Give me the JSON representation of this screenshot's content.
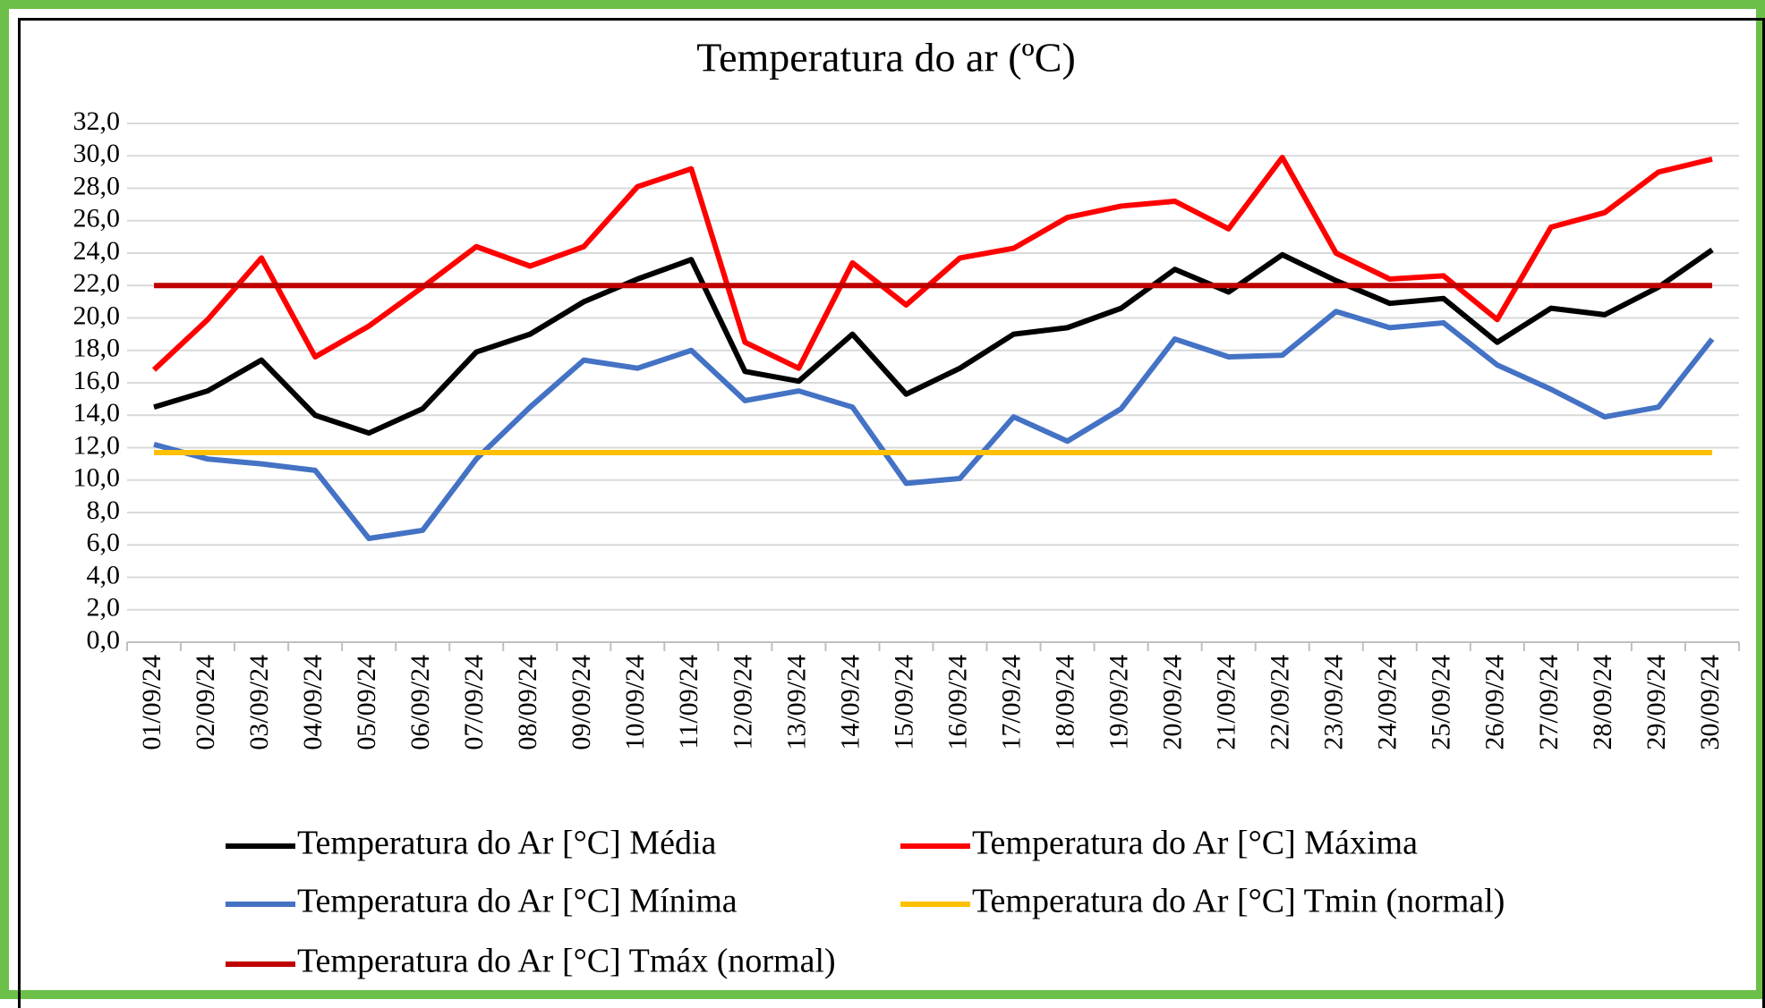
{
  "chart_data": {
    "type": "line",
    "title": "Temperatura do ar (ºC)",
    "categories": [
      "01/09/24",
      "02/09/24",
      "03/09/24",
      "04/09/24",
      "05/09/24",
      "06/09/24",
      "07/09/24",
      "08/09/24",
      "09/09/24",
      "10/09/24",
      "11/09/24",
      "12/09/24",
      "13/09/24",
      "14/09/24",
      "15/09/24",
      "16/09/24",
      "17/09/24",
      "18/09/24",
      "19/09/24",
      "20/09/24",
      "21/09/24",
      "22/09/24",
      "23/09/24",
      "24/09/24",
      "25/09/24",
      "26/09/24",
      "27/09/24",
      "28/09/24",
      "29/09/24",
      "30/09/24"
    ],
    "series": [
      {
        "name": "Temperatura do Ar [°C] Média",
        "color": "#000000",
        "values": [
          14.5,
          15.5,
          17.4,
          14.0,
          12.9,
          14.4,
          17.9,
          19.0,
          21.0,
          22.4,
          23.6,
          16.7,
          16.1,
          19.0,
          15.3,
          16.9,
          19.0,
          19.4,
          20.6,
          23.0,
          21.6,
          23.9,
          22.3,
          20.9,
          21.2,
          18.5,
          20.6,
          20.2,
          21.9,
          24.2
        ]
      },
      {
        "name": "Temperatura do Ar [°C] Máxima",
        "color": "#ff0000",
        "values": [
          16.8,
          19.9,
          23.7,
          17.6,
          19.5,
          21.9,
          24.4,
          23.2,
          24.4,
          28.1,
          29.2,
          18.5,
          16.9,
          23.4,
          20.8,
          23.7,
          24.3,
          26.2,
          26.9,
          27.2,
          25.5,
          29.9,
          24.0,
          22.4,
          22.6,
          19.9,
          25.6,
          26.5,
          29.0,
          29.8
        ]
      },
      {
        "name": "Temperatura do Ar [°C] Mínima",
        "color": "#4472c4",
        "values": [
          12.2,
          11.3,
          11.0,
          10.6,
          6.4,
          6.9,
          11.3,
          14.5,
          17.4,
          16.9,
          18.0,
          14.9,
          15.5,
          14.5,
          9.8,
          10.1,
          13.9,
          12.4,
          14.4,
          18.7,
          17.6,
          17.7,
          20.4,
          19.4,
          19.7,
          17.1,
          15.6,
          13.9,
          14.5,
          18.7
        ]
      },
      {
        "name": "Temperatura do Ar [°C] Tmin (normal)",
        "color": "#ffc000",
        "values": [
          11.7,
          11.7,
          11.7,
          11.7,
          11.7,
          11.7,
          11.7,
          11.7,
          11.7,
          11.7,
          11.7,
          11.7,
          11.7,
          11.7,
          11.7,
          11.7,
          11.7,
          11.7,
          11.7,
          11.7,
          11.7,
          11.7,
          11.7,
          11.7,
          11.7,
          11.7,
          11.7,
          11.7,
          11.7,
          11.7
        ]
      },
      {
        "name": "Temperatura do Ar [°C] Tmáx (normal)",
        "color": "#c00000",
        "values": [
          22.0,
          22.0,
          22.0,
          22.0,
          22.0,
          22.0,
          22.0,
          22.0,
          22.0,
          22.0,
          22.0,
          22.0,
          22.0,
          22.0,
          22.0,
          22.0,
          22.0,
          22.0,
          22.0,
          22.0,
          22.0,
          22.0,
          22.0,
          22.0,
          22.0,
          22.0,
          22.0,
          22.0,
          22.0,
          22.0
        ]
      }
    ],
    "ylim": [
      0,
      32
    ],
    "yticks": [
      {
        "value": 0,
        "label": "0,0"
      },
      {
        "value": 2,
        "label": "2,0"
      },
      {
        "value": 4,
        "label": "4,0"
      },
      {
        "value": 6,
        "label": "6,0"
      },
      {
        "value": 8,
        "label": "8,0"
      },
      {
        "value": 10,
        "label": "10,0"
      },
      {
        "value": 12,
        "label": "12,0"
      },
      {
        "value": 14,
        "label": "14,0"
      },
      {
        "value": 16,
        "label": "16,0"
      },
      {
        "value": 18,
        "label": "18,0"
      },
      {
        "value": 20,
        "label": "20,0"
      },
      {
        "value": 22,
        "label": "22,0"
      },
      {
        "value": 24,
        "label": "24,0"
      },
      {
        "value": 26,
        "label": "26,0"
      },
      {
        "value": 28,
        "label": "28,0"
      },
      {
        "value": 30,
        "label": "30,0"
      },
      {
        "value": 32,
        "label": "32,0"
      }
    ],
    "grid": true,
    "legend": "bottom"
  }
}
